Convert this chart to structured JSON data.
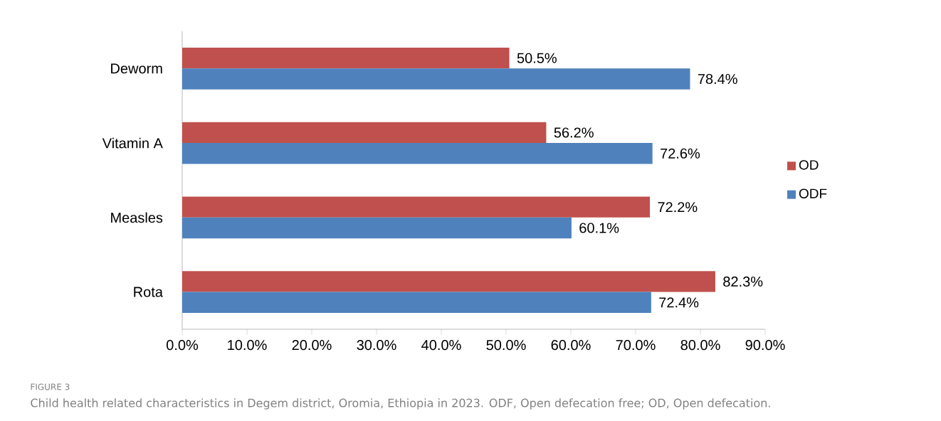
{
  "chart_data": {
    "type": "bar",
    "orientation": "horizontal",
    "categories": [
      "Deworm",
      "Vitamin A",
      "Measles",
      "Rota"
    ],
    "series": [
      {
        "name": "OD",
        "color": "#c0504d",
        "values": [
          50.5,
          56.2,
          72.2,
          82.3
        ],
        "value_labels": [
          "50.5%",
          "56.2%",
          "72.2%",
          "82.3%"
        ]
      },
      {
        "name": "ODF",
        "color": "#4f81bd",
        "values": [
          78.4,
          72.6,
          60.1,
          72.4
        ],
        "value_labels": [
          "78.4%",
          "72.6%",
          "60.1%",
          "72.4%"
        ]
      }
    ],
    "xlim": [
      0,
      90
    ],
    "xticks": [
      {
        "value": 0,
        "label": "0.0%"
      },
      {
        "value": 10,
        "label": "10.0%"
      },
      {
        "value": 20,
        "label": "20.0%"
      },
      {
        "value": 30,
        "label": "30.0%"
      },
      {
        "value": 40,
        "label": "40.0%"
      },
      {
        "value": 50,
        "label": "50.0%"
      },
      {
        "value": 60,
        "label": "60.0%"
      },
      {
        "value": 70,
        "label": "70.0%"
      },
      {
        "value": 80,
        "label": "80.0%"
      },
      {
        "value": 90,
        "label": "90.0%"
      }
    ],
    "legend": "right",
    "grid": false,
    "annotations": [
      "FIGURE 3",
      "Child health related characteristics in Degem district, Oromia, Ethiopia in 2023. ODF, Open defecation free; OD, Open defecation."
    ]
  }
}
